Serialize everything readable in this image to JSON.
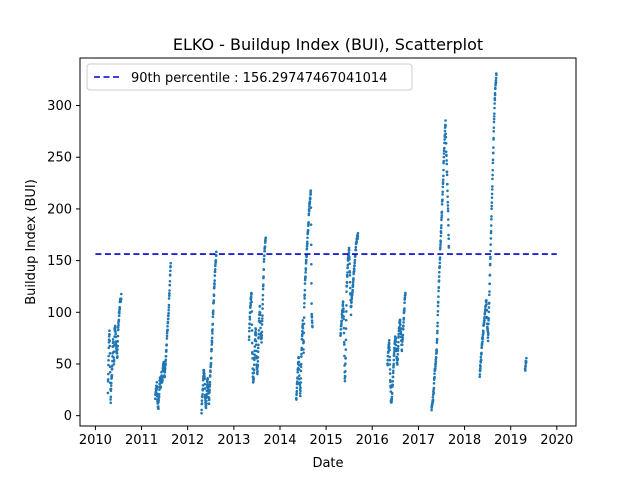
{
  "chart_data": {
    "type": "scatter",
    "title": "ELKO - Buildup Index (BUI), Scatterplot",
    "xlabel": "Date",
    "ylabel": "Buildup Index (BUI)",
    "xlim": [
      "2009-09-01",
      "2020-06-01"
    ],
    "ylim": [
      -10,
      346
    ],
    "x_ticks": [
      "2010",
      "2011",
      "2012",
      "2013",
      "2014",
      "2015",
      "2016",
      "2017",
      "2018",
      "2019",
      "2020"
    ],
    "y_ticks": [
      0,
      50,
      100,
      150,
      200,
      250,
      300
    ],
    "grid": false,
    "legend_position": "upper left",
    "point_color": "#1f77b4",
    "reference_line": {
      "label": "90th percentile : 156.29747467041014",
      "value": 156.29747467041014,
      "x_range": [
        "2010-01-01",
        "2020-01-01"
      ],
      "color": "#0000cc",
      "style": "dashed"
    },
    "seasons": [
      {
        "year": 2010,
        "start": "2010-04-10",
        "end": "2010-07-25",
        "points": [
          [
            0.0,
            25
          ],
          [
            0.05,
            55
          ],
          [
            0.08,
            72
          ],
          [
            0.12,
            82
          ],
          [
            0.15,
            60
          ],
          [
            0.2,
            12
          ],
          [
            0.25,
            30
          ],
          [
            0.3,
            42
          ],
          [
            0.35,
            62
          ],
          [
            0.4,
            75
          ],
          [
            0.45,
            48
          ],
          [
            0.5,
            82
          ],
          [
            0.55,
            88
          ],
          [
            0.6,
            70
          ],
          [
            0.65,
            62
          ],
          [
            0.7,
            55
          ],
          [
            0.75,
            80
          ],
          [
            0.8,
            92
          ],
          [
            0.85,
            100
          ],
          [
            0.9,
            108
          ],
          [
            0.95,
            112
          ],
          [
            1.0,
            117
          ]
        ]
      },
      {
        "year": 2011,
        "start": "2011-04-20",
        "end": "2011-08-20",
        "points": [
          [
            0.0,
            18
          ],
          [
            0.05,
            25
          ],
          [
            0.1,
            30
          ],
          [
            0.15,
            12
          ],
          [
            0.2,
            8
          ],
          [
            0.25,
            22
          ],
          [
            0.3,
            35
          ],
          [
            0.35,
            28
          ],
          [
            0.4,
            40
          ],
          [
            0.45,
            32
          ],
          [
            0.5,
            45
          ],
          [
            0.55,
            52
          ],
          [
            0.6,
            38
          ],
          [
            0.65,
            48
          ],
          [
            0.7,
            60
          ],
          [
            0.75,
            72
          ],
          [
            0.8,
            85
          ],
          [
            0.85,
            98
          ],
          [
            0.9,
            115
          ],
          [
            0.95,
            130
          ],
          [
            1.0,
            148
          ]
        ]
      },
      {
        "year": 2012,
        "start": "2012-04-20",
        "end": "2012-08-15",
        "points": [
          [
            0.0,
            5
          ],
          [
            0.05,
            18
          ],
          [
            0.1,
            30
          ],
          [
            0.15,
            45
          ],
          [
            0.2,
            40
          ],
          [
            0.25,
            15
          ],
          [
            0.3,
            8
          ],
          [
            0.35,
            20
          ],
          [
            0.4,
            35
          ],
          [
            0.45,
            28
          ],
          [
            0.5,
            12
          ],
          [
            0.55,
            25
          ],
          [
            0.6,
            42
          ],
          [
            0.65,
            55
          ],
          [
            0.7,
            70
          ],
          [
            0.75,
            88
          ],
          [
            0.8,
            105
          ],
          [
            0.85,
            120
          ],
          [
            0.9,
            135
          ],
          [
            0.95,
            148
          ],
          [
            1.0,
            158
          ]
        ]
      },
      {
        "year": 2013,
        "start": "2013-05-01",
        "end": "2013-09-10",
        "points": [
          [
            0.0,
            75
          ],
          [
            0.05,
            95
          ],
          [
            0.1,
            110
          ],
          [
            0.15,
            118
          ],
          [
            0.2,
            60
          ],
          [
            0.25,
            30
          ],
          [
            0.3,
            45
          ],
          [
            0.35,
            70
          ],
          [
            0.4,
            85
          ],
          [
            0.45,
            55
          ],
          [
            0.5,
            40
          ],
          [
            0.55,
            65
          ],
          [
            0.6,
            90
          ],
          [
            0.65,
            105
          ],
          [
            0.7,
            80
          ],
          [
            0.75,
            72
          ],
          [
            0.8,
            95
          ],
          [
            0.85,
            125
          ],
          [
            0.9,
            150
          ],
          [
            0.95,
            165
          ],
          [
            1.0,
            170
          ]
        ]
      },
      {
        "year": 2014,
        "start": "2014-05-10",
        "end": "2014-09-15",
        "points": [
          [
            0.0,
            15
          ],
          [
            0.05,
            30
          ],
          [
            0.1,
            45
          ],
          [
            0.15,
            58
          ],
          [
            0.2,
            35
          ],
          [
            0.25,
            20
          ],
          [
            0.3,
            50
          ],
          [
            0.35,
            75
          ],
          [
            0.4,
            92
          ],
          [
            0.45,
            60
          ],
          [
            0.5,
            110
          ],
          [
            0.55,
            130
          ],
          [
            0.6,
            145
          ],
          [
            0.65,
            160
          ],
          [
            0.7,
            172
          ],
          [
            0.75,
            185
          ],
          [
            0.8,
            200
          ],
          [
            0.85,
            210
          ],
          [
            0.9,
            217
          ],
          [
            0.95,
            100
          ],
          [
            1.0,
            85
          ]
        ]
      },
      {
        "year": 2015,
        "start": "2015-04-25",
        "end": "2015-09-10",
        "points": [
          [
            0.0,
            75
          ],
          [
            0.05,
            90
          ],
          [
            0.1,
            100
          ],
          [
            0.15,
            110
          ],
          [
            0.2,
            85
          ],
          [
            0.25,
            30
          ],
          [
            0.3,
            60
          ],
          [
            0.35,
            120
          ],
          [
            0.4,
            140
          ],
          [
            0.45,
            155
          ],
          [
            0.5,
            160
          ],
          [
            0.55,
            130
          ],
          [
            0.6,
            100
          ],
          [
            0.65,
            115
          ],
          [
            0.7,
            125
          ],
          [
            0.75,
            135
          ],
          [
            0.8,
            145
          ],
          [
            0.85,
            155
          ],
          [
            0.9,
            165
          ],
          [
            0.95,
            172
          ],
          [
            1.0,
            175
          ]
        ]
      },
      {
        "year": 2016,
        "start": "2016-05-01",
        "end": "2016-09-20",
        "points": [
          [
            0.0,
            50
          ],
          [
            0.05,
            62
          ],
          [
            0.1,
            72
          ],
          [
            0.15,
            40
          ],
          [
            0.2,
            12
          ],
          [
            0.25,
            20
          ],
          [
            0.3,
            35
          ],
          [
            0.35,
            55
          ],
          [
            0.4,
            68
          ],
          [
            0.45,
            78
          ],
          [
            0.5,
            60
          ],
          [
            0.55,
            48
          ],
          [
            0.6,
            70
          ],
          [
            0.65,
            85
          ],
          [
            0.7,
            92
          ],
          [
            0.75,
            80
          ],
          [
            0.8,
            65
          ],
          [
            0.85,
            75
          ],
          [
            0.9,
            95
          ],
          [
            0.95,
            108
          ],
          [
            1.0,
            118
          ]
        ]
      },
      {
        "year": 2017,
        "start": "2017-04-15",
        "end": "2017-08-30",
        "points": [
          [
            0.0,
            8
          ],
          [
            0.05,
            12
          ],
          [
            0.1,
            20
          ],
          [
            0.15,
            35
          ],
          [
            0.2,
            45
          ],
          [
            0.25,
            55
          ],
          [
            0.3,
            65
          ],
          [
            0.35,
            90
          ],
          [
            0.4,
            120
          ],
          [
            0.45,
            140
          ],
          [
            0.5,
            160
          ],
          [
            0.55,
            180
          ],
          [
            0.6,
            200
          ],
          [
            0.65,
            220
          ],
          [
            0.7,
            245
          ],
          [
            0.75,
            265
          ],
          [
            0.8,
            285
          ],
          [
            0.85,
            255
          ],
          [
            0.9,
            230
          ],
          [
            0.95,
            200
          ],
          [
            1.0,
            160
          ]
        ]
      },
      {
        "year": 2018,
        "start": "2018-05-01",
        "end": "2018-09-10",
        "points": [
          [
            0.0,
            40
          ],
          [
            0.05,
            50
          ],
          [
            0.1,
            60
          ],
          [
            0.15,
            72
          ],
          [
            0.2,
            80
          ],
          [
            0.25,
            88
          ],
          [
            0.3,
            95
          ],
          [
            0.35,
            105
          ],
          [
            0.4,
            112
          ],
          [
            0.45,
            90
          ],
          [
            0.5,
            75
          ],
          [
            0.55,
            100
          ],
          [
            0.6,
            130
          ],
          [
            0.65,
            160
          ],
          [
            0.7,
            190
          ],
          [
            0.75,
            220
          ],
          [
            0.8,
            250
          ],
          [
            0.85,
            280
          ],
          [
            0.9,
            305
          ],
          [
            0.95,
            320
          ],
          [
            1.0,
            330
          ]
        ]
      },
      {
        "year": 2019,
        "start": "2019-04-25",
        "end": "2019-05-05",
        "points": [
          [
            0.0,
            44
          ],
          [
            0.25,
            47
          ],
          [
            0.5,
            50
          ],
          [
            0.75,
            53
          ],
          [
            1.0,
            56
          ]
        ]
      }
    ]
  }
}
